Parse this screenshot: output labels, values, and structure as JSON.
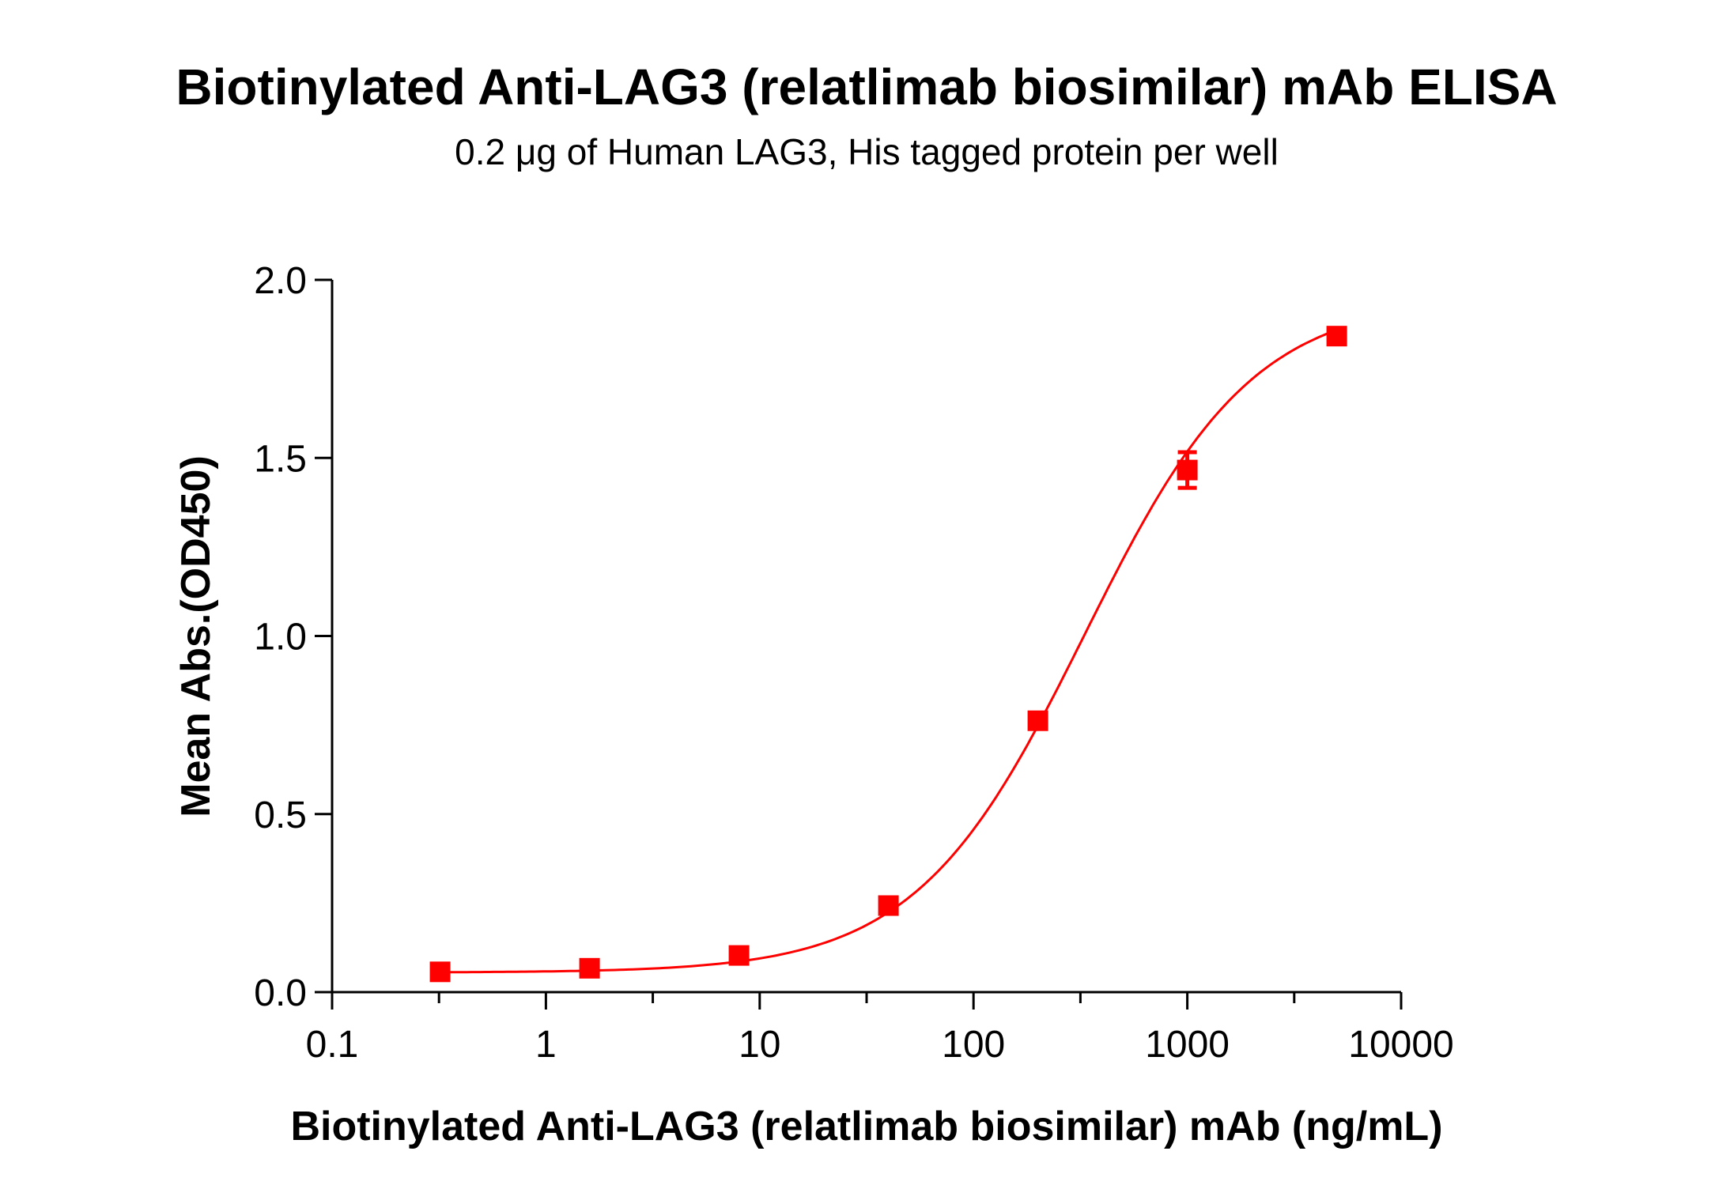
{
  "chart_data": {
    "type": "scatter",
    "title": "Biotinylated Anti-LAG3 (relatlimab biosimilar) mAb ELISA",
    "subtitle": "0.2 μg of Human LAG3, His tagged protein per well",
    "xlabel": "Biotinylated Anti-LAG3 (relatlimab biosimilar) mAb (ng/mL)",
    "ylabel": "Mean Abs.(OD450)",
    "xscale": "log",
    "xlim": [
      0.1,
      10000
    ],
    "ylim": [
      0,
      2.0
    ],
    "xticks": [
      "0.1",
      "1",
      "10",
      "100",
      "1000",
      "10000"
    ],
    "yticks": [
      "0.0",
      "0.5",
      "1.0",
      "1.5",
      "2.0"
    ],
    "grid": false,
    "color": "#ff0000",
    "marker": "square",
    "fit": "sigmoidal curve",
    "series": [
      {
        "x": [
          0.32,
          1.6,
          8,
          40,
          200,
          1000,
          5000
        ],
        "y": [
          0.057,
          0.067,
          0.103,
          0.243,
          0.762,
          1.466,
          1.842
        ],
        "error": [
          0.005,
          0.005,
          0.005,
          0.005,
          0.01,
          0.05,
          0.005
        ]
      }
    ]
  }
}
